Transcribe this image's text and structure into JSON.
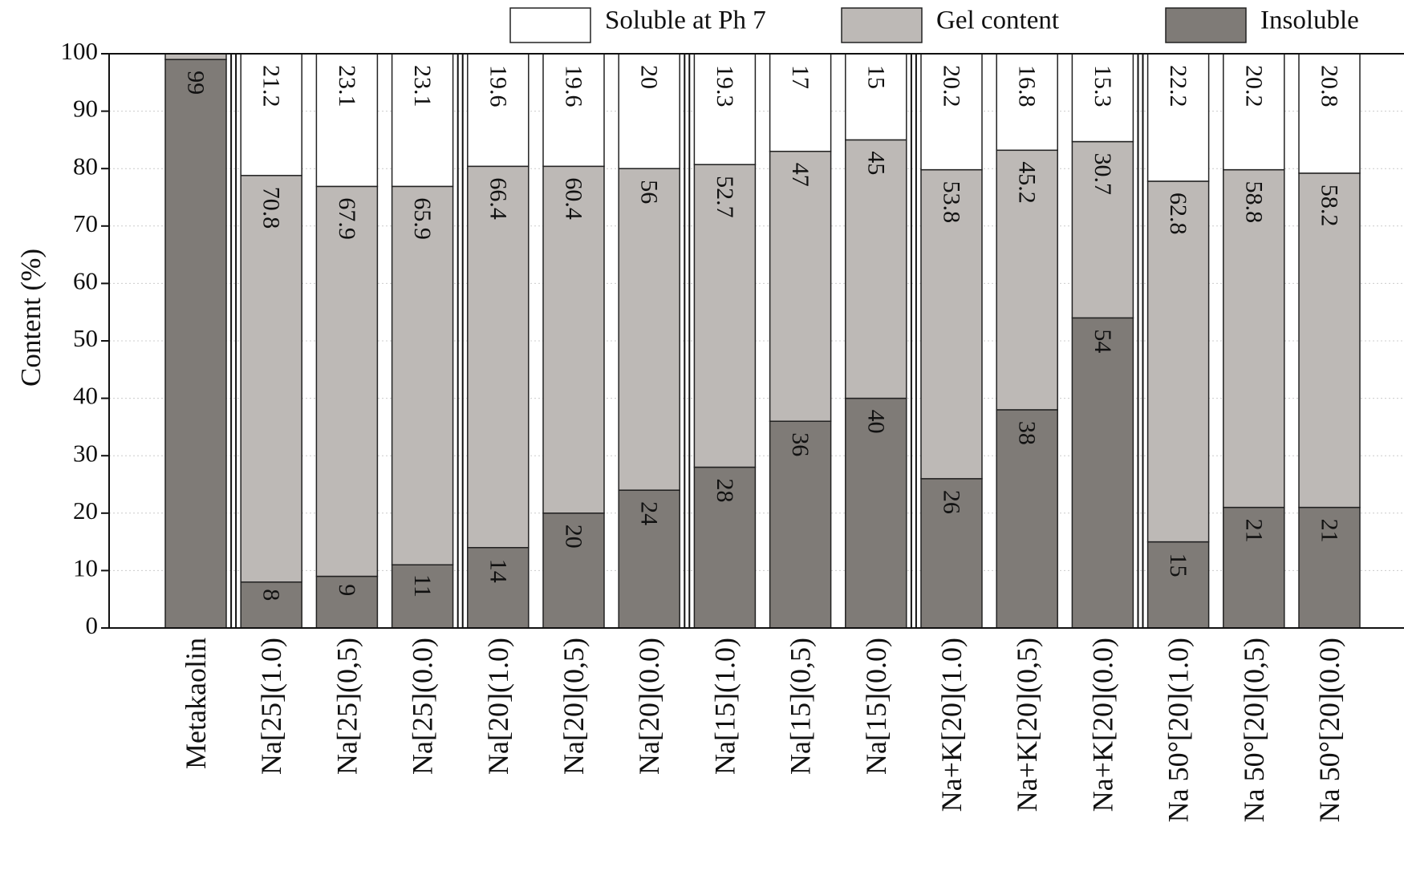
{
  "chart_data": {
    "type": "stacked-bar",
    "y_label": "Content (%)",
    "categories": [
      "Metakaolin",
      "Na[25](1.0)",
      "Na[25](0,5)",
      "Na[25](0.0)",
      "Na[20](1.0)",
      "Na[20](0,5)",
      "Na[20](0.0)",
      "Na[15](1.0)",
      "Na[15](0,5)",
      "Na[15](0.0)",
      "Na+K[20](1.0)",
      "Na+K[20](0,5)",
      "Na+K[20](0.0)",
      "Na 50°[20](1.0)",
      "Na 50°[20](0,5)",
      "Na 50°[20](0.0)"
    ],
    "series": [
      {
        "name": "Insoluble",
        "color": "#7f7b77",
        "values": [
          99,
          8,
          9,
          11,
          14,
          20,
          24,
          28,
          36,
          40,
          26,
          38,
          54,
          15,
          21,
          21
        ]
      },
      {
        "name": "Gel content",
        "color": "#bdb9b6",
        "values": [
          1,
          70.8,
          67.9,
          65.9,
          66.4,
          60.4,
          56,
          52.7,
          47,
          45,
          53.8,
          45.2,
          30.7,
          62.8,
          58.8,
          58.2
        ],
        "value_labels": [
          null,
          "70.8",
          "67.9",
          "65.9",
          "66.4",
          "60.4",
          "56",
          "52.7",
          "47",
          "45",
          "53.8",
          "45.2",
          "30.7",
          "62.8",
          "58.8",
          "58.2"
        ]
      },
      {
        "name": "Soluble at Ph 7",
        "color": "#ffffff",
        "values": [
          null,
          21.2,
          23.1,
          23.1,
          19.6,
          19.6,
          20,
          19.3,
          17,
          15,
          20.2,
          16.8,
          15.3,
          22.2,
          20.2,
          20.8
        ]
      }
    ],
    "ylim": [
      0,
      100
    ],
    "yticks": [
      0,
      10,
      20,
      30,
      40,
      50,
      60,
      70,
      80,
      90,
      100
    ],
    "grid": true
  }
}
